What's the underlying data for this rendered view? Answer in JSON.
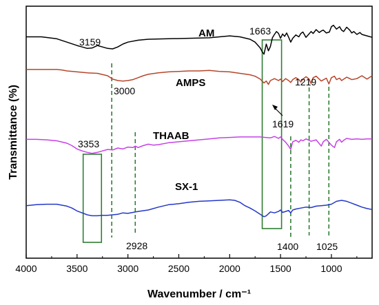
{
  "chart_data": {
    "type": "line",
    "xlabel": "Wavenumber / cm⁻¹",
    "ylabel": "Transmittance (%)",
    "xlim": [
      4000,
      600
    ],
    "xticks": [
      4000,
      3500,
      3000,
      2500,
      2000,
      1500,
      1000
    ],
    "grid": false,
    "series": [
      {
        "name": "AM",
        "color": "#000000",
        "x": [
          4000,
          3850,
          3700,
          3600,
          3500,
          3450,
          3400,
          3350,
          3300,
          3250,
          3200,
          3150,
          3100,
          3050,
          3000,
          2900,
          2800,
          2600,
          2400,
          2200,
          2000,
          1900,
          1800,
          1750,
          1700,
          1680,
          1663,
          1640,
          1619,
          1600,
          1580,
          1560,
          1540,
          1520,
          1500,
          1480,
          1460,
          1440,
          1420,
          1400,
          1380,
          1350,
          1320,
          1300,
          1280,
          1250,
          1220,
          1200,
          1180,
          1150,
          1120,
          1100,
          1080,
          1050,
          1020,
          1000,
          980,
          950,
          920,
          900,
          880,
          850,
          820,
          800,
          780,
          750,
          720,
          700,
          650,
          600
        ],
        "y": [
          0.5,
          0.5,
          0.1,
          -0.6,
          -1.3,
          -1.6,
          -1.9,
          -1.8,
          -1.3,
          -1.6,
          -1.9,
          -2.0,
          -1.6,
          -1.0,
          -0.6,
          -0.2,
          0.0,
          0.1,
          0.2,
          0.3,
          0.7,
          0.5,
          0.0,
          -0.6,
          -1.8,
          -2.6,
          -3.1,
          -1.0,
          -2.4,
          -1.5,
          0.3,
          1.0,
          1.6,
          1.2,
          0.2,
          1.1,
          0.6,
          1.3,
          0.4,
          -0.6,
          0.2,
          0.9,
          0.5,
          1.2,
          1.5,
          0.4,
          1.1,
          1.6,
          1.2,
          2.0,
          1.4,
          1.7,
          1.9,
          1.3,
          1.5,
          2.6,
          2.9,
          2.1,
          2.6,
          1.9,
          1.6,
          2.5,
          1.9,
          1.3,
          1.6,
          1.0,
          1.4,
          1.0,
          0.7,
          0.4
        ]
      },
      {
        "name": "AMPS",
        "color": "#b5452a",
        "x": [
          4000,
          3850,
          3750,
          3700,
          3650,
          3600,
          3500,
          3400,
          3300,
          3200,
          3150,
          3100,
          3050,
          3000,
          2950,
          2900,
          2850,
          2800,
          2700,
          2600,
          2500,
          2400,
          2300,
          2200,
          2100,
          2000,
          1900,
          1800,
          1750,
          1700,
          1663,
          1640,
          1619,
          1600,
          1560,
          1520,
          1500,
          1480,
          1450,
          1420,
          1400,
          1380,
          1350,
          1320,
          1300,
          1280,
          1250,
          1219,
          1200,
          1180,
          1150,
          1100,
          1050,
          1025,
          1000,
          970,
          950,
          920,
          900,
          850,
          800,
          750,
          700,
          650,
          600
        ],
        "y": [
          3.3,
          3.3,
          3.3,
          3.3,
          3.2,
          3.0,
          2.8,
          2.6,
          2.5,
          2.0,
          1.3,
          1.0,
          0.9,
          1.0,
          1.2,
          1.6,
          2.0,
          2.3,
          2.6,
          2.8,
          2.9,
          3.0,
          3.0,
          3.1,
          2.9,
          2.8,
          2.5,
          2.2,
          1.9,
          1.3,
          0.5,
          0.9,
          0.2,
          1.0,
          1.4,
          1.0,
          1.3,
          0.8,
          1.4,
          1.0,
          0.6,
          1.2,
          1.6,
          1.2,
          0.7,
          1.3,
          1.8,
          1.3,
          0.4,
          1.6,
          1.9,
          0.9,
          1.5,
          0.3,
          1.6,
          1.9,
          1.2,
          1.5,
          1.0,
          1.7,
          1.2,
          1.4,
          2.0,
          1.3,
          2.0
        ]
      },
      {
        "name": "THAAB",
        "color": "#c540e6",
        "x": [
          4000,
          3900,
          3800,
          3700,
          3600,
          3550,
          3500,
          3450,
          3400,
          3353,
          3300,
          3250,
          3200,
          3150,
          3100,
          3050,
          3000,
          2950,
          2928,
          2900,
          2850,
          2800,
          2750,
          2700,
          2600,
          2500,
          2400,
          2300,
          2200,
          2100,
          2000,
          1900,
          1800,
          1700,
          1650,
          1600,
          1560,
          1520,
          1500,
          1480,
          1450,
          1420,
          1400,
          1380,
          1350,
          1320,
          1300,
          1280,
          1250,
          1200,
          1150,
          1100,
          1080,
          1050,
          1000,
          970,
          950,
          920,
          900,
          880,
          850,
          800,
          750,
          700,
          650,
          600
        ],
        "y": [
          0.8,
          0.8,
          0.7,
          0.5,
          0.0,
          -0.5,
          -1.2,
          -1.6,
          -1.9,
          -2.1,
          -1.9,
          -1.6,
          -1.3,
          -1.4,
          -1.0,
          -1.2,
          -0.8,
          -0.9,
          -0.6,
          -0.9,
          -0.5,
          -0.2,
          -0.4,
          -0.3,
          0.1,
          0.3,
          0.5,
          0.7,
          0.9,
          1.1,
          1.2,
          1.3,
          1.3,
          1.3,
          1.2,
          1.1,
          1.4,
          1.0,
          1.3,
          0.8,
          0.2,
          -0.6,
          -1.3,
          0.3,
          0.6,
          0.2,
          0.7,
          0.5,
          0.9,
          0.4,
          0.7,
          -0.6,
          0.3,
          0.8,
          -0.4,
          -0.9,
          0.3,
          0.8,
          0.2,
          0.6,
          1.0,
          0.8,
          0.9,
          0.8,
          0.9,
          0.9
        ]
      },
      {
        "name": "SX-1",
        "color": "#2336c7",
        "x": [
          4000,
          3900,
          3800,
          3700,
          3600,
          3550,
          3500,
          3450,
          3400,
          3353,
          3300,
          3250,
          3200,
          3150,
          3100,
          3050,
          3000,
          2950,
          2900,
          2800,
          2700,
          2600,
          2500,
          2400,
          2300,
          2200,
          2100,
          2000,
          1950,
          1900,
          1850,
          1800,
          1750,
          1700,
          1663,
          1640,
          1619,
          1600,
          1560,
          1520,
          1500,
          1480,
          1450,
          1420,
          1400,
          1380,
          1350,
          1300,
          1250,
          1200,
          1150,
          1100,
          1050,
          1000,
          950,
          900,
          850,
          800,
          750,
          700,
          650,
          600
        ],
        "y": [
          0.9,
          1.1,
          1.2,
          1.2,
          0.8,
          0.4,
          -0.2,
          -0.6,
          -1.0,
          -1.2,
          -1.2,
          -1.1,
          -1.1,
          -1.0,
          -0.9,
          -0.6,
          -0.7,
          -0.5,
          -0.3,
          0.0,
          0.6,
          1.1,
          1.3,
          1.6,
          1.8,
          1.9,
          2.0,
          2.1,
          2.0,
          1.6,
          0.9,
          0.4,
          -0.2,
          -0.9,
          -1.4,
          -1.2,
          -0.8,
          -0.4,
          -0.6,
          -0.3,
          0.0,
          -0.5,
          -0.3,
          -0.1,
          -0.6,
          0.0,
          0.2,
          0.4,
          0.6,
          0.5,
          0.8,
          0.9,
          1.0,
          1.2,
          1.8,
          2.0,
          1.8,
          1.4,
          1.0,
          0.6,
          0.3,
          0.1
        ]
      }
    ],
    "annotations": [
      {
        "text": "3159",
        "x": 3159,
        "series": "AM"
      },
      {
        "text": "1663",
        "x": 1663,
        "series": "AM"
      },
      {
        "text": "3000",
        "x": 3000,
        "series": "AMPS"
      },
      {
        "text": "1219",
        "x": 1219,
        "series": "AMPS"
      },
      {
        "text": "1619",
        "x": 1619,
        "series": "AMPS"
      },
      {
        "text": "3353",
        "x": 3353,
        "series": "THAAB"
      },
      {
        "text": "2928",
        "x": 2928,
        "series": "SX-1"
      },
      {
        "text": "1400",
        "x": 1400,
        "series": "SX-1"
      },
      {
        "text": "1025",
        "x": 1025,
        "series": "SX-1"
      }
    ],
    "dashed_lines": [
      {
        "x": 3159,
        "color": "#2e7d32"
      },
      {
        "x": 2928,
        "color": "#2e7d32"
      },
      {
        "x": 1400,
        "color": "#2e7d32"
      },
      {
        "x": 1219,
        "color": "#2e7d32"
      },
      {
        "x": 1025,
        "color": "#2e7d32"
      }
    ],
    "highlight_boxes": [
      {
        "x_from": 3440,
        "x_to": 3260,
        "color": "#2e7d32"
      },
      {
        "x_from": 1680,
        "x_to": 1490,
        "color": "#2e7d32"
      }
    ]
  }
}
